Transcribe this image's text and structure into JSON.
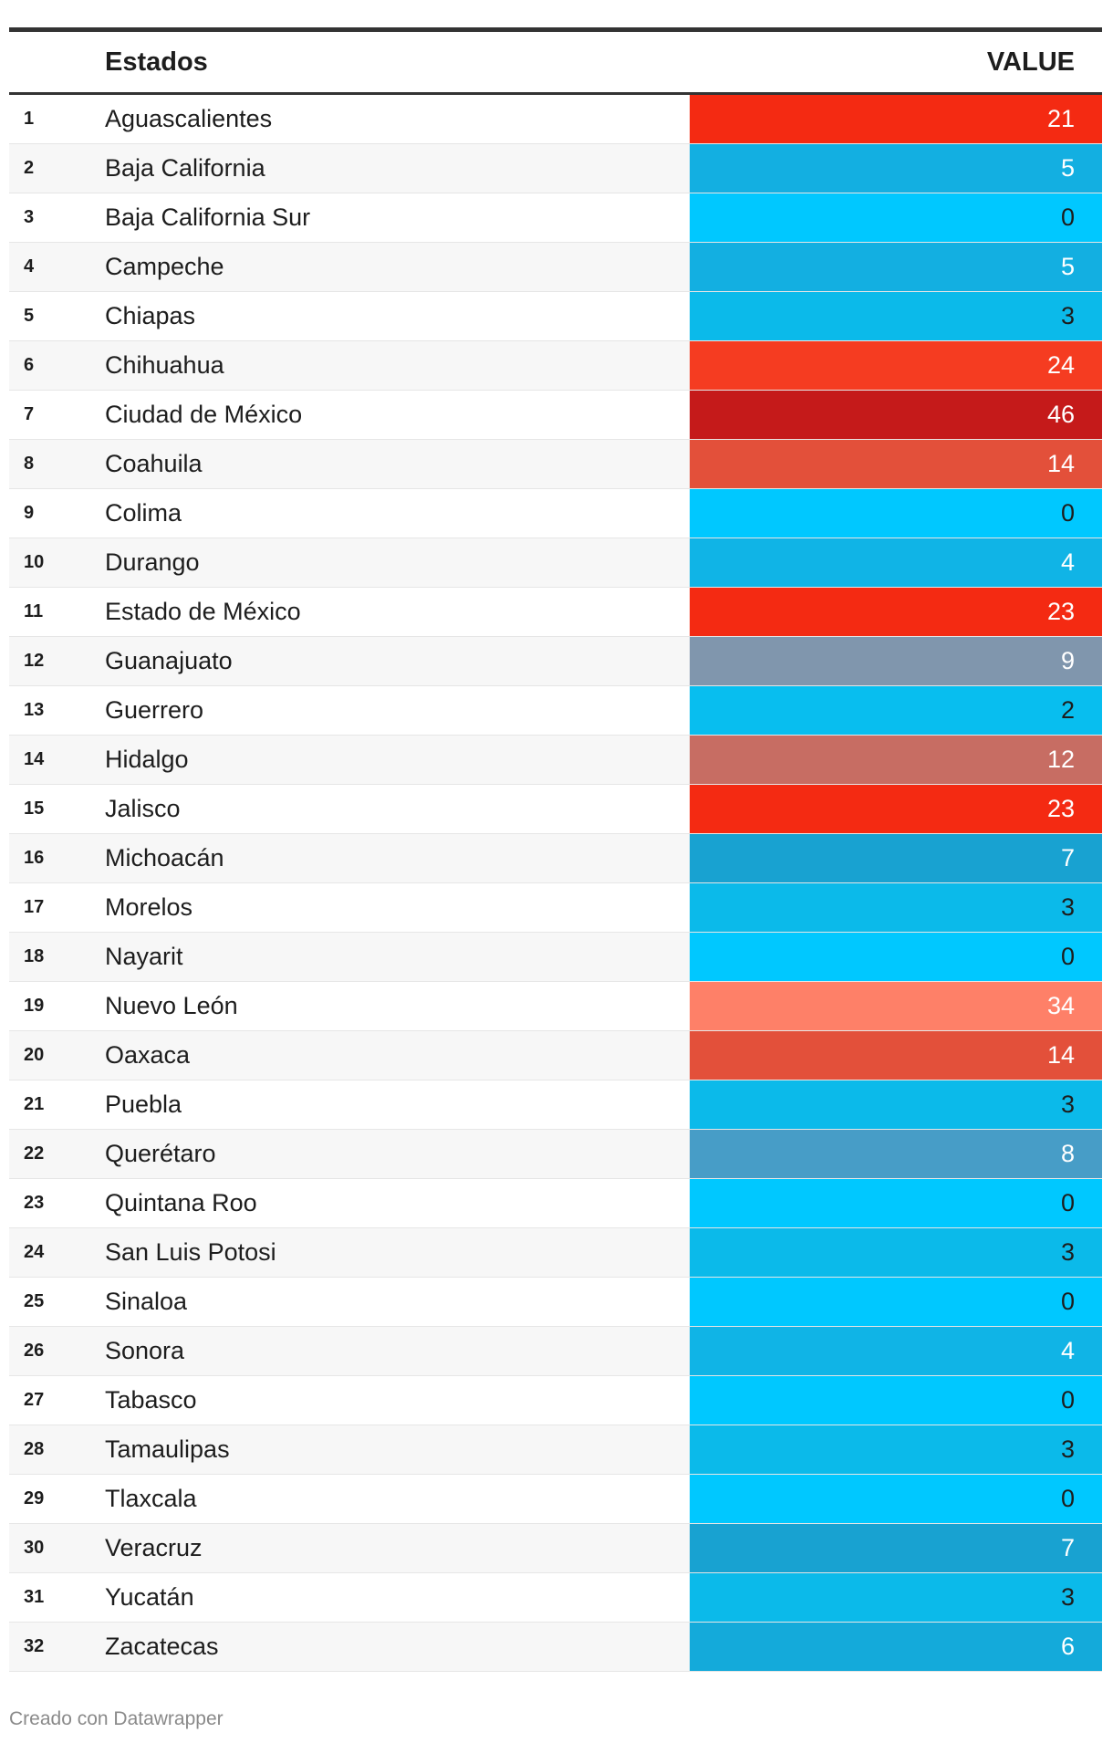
{
  "header": {
    "name_label": "Estados",
    "value_label": "VALUE"
  },
  "chart_data": {
    "type": "table",
    "columns": [
      "Estados",
      "VALUE"
    ],
    "rows": [
      {
        "rank": "1",
        "name": "Aguascalientes",
        "value": 21,
        "color": "#f42a12",
        "text_color": "#ffffff"
      },
      {
        "rank": "2",
        "name": "Baja California",
        "value": 5,
        "color": "#13afe1",
        "text_color": "#ffffff"
      },
      {
        "rank": "3",
        "name": "Baja California Sur",
        "value": 0,
        "color": "#00c8ff",
        "text_color": "#1d1d1d"
      },
      {
        "rank": "4",
        "name": "Campeche",
        "value": 5,
        "color": "#13afe1",
        "text_color": "#ffffff"
      },
      {
        "rank": "5",
        "name": "Chiapas",
        "value": 3,
        "color": "#0bbaea",
        "text_color": "#1d1d1d"
      },
      {
        "rank": "6",
        "name": "Chihuahua",
        "value": 24,
        "color": "#f53c21",
        "text_color": "#ffffff"
      },
      {
        "rank": "7",
        "name": "Ciudad de México",
        "value": 46,
        "color": "#c51a1a",
        "text_color": "#ffffff"
      },
      {
        "rank": "8",
        "name": "Coahuila",
        "value": 14,
        "color": "#e3503a",
        "text_color": "#ffffff"
      },
      {
        "rank": "9",
        "name": "Colima",
        "value": 0,
        "color": "#00c8ff",
        "text_color": "#1d1d1d"
      },
      {
        "rank": "10",
        "name": "Durango",
        "value": 4,
        "color": "#10b4e6",
        "text_color": "#ffffff"
      },
      {
        "rank": "11",
        "name": "Estado de México",
        "value": 23,
        "color": "#f42a12",
        "text_color": "#ffffff"
      },
      {
        "rank": "12",
        "name": "Guanajuato",
        "value": 9,
        "color": "#8096ad",
        "text_color": "#ffffff"
      },
      {
        "rank": "13",
        "name": "Guerrero",
        "value": 2,
        "color": "#08beef",
        "text_color": "#1d1d1d"
      },
      {
        "rank": "14",
        "name": "Hidalgo",
        "value": 12,
        "color": "#c76d63",
        "text_color": "#ffffff"
      },
      {
        "rank": "15",
        "name": "Jalisco",
        "value": 23,
        "color": "#f42a12",
        "text_color": "#ffffff"
      },
      {
        "rank": "16",
        "name": "Michoacán",
        "value": 7,
        "color": "#18a2d1",
        "text_color": "#ffffff"
      },
      {
        "rank": "17",
        "name": "Morelos",
        "value": 3,
        "color": "#0bbaea",
        "text_color": "#1d1d1d"
      },
      {
        "rank": "18",
        "name": "Nayarit",
        "value": 0,
        "color": "#00c8ff",
        "text_color": "#1d1d1d"
      },
      {
        "rank": "19",
        "name": "Nuevo León",
        "value": 34,
        "color": "#fe8068",
        "text_color": "#ffffff"
      },
      {
        "rank": "20",
        "name": "Oaxaca",
        "value": 14,
        "color": "#e3503a",
        "text_color": "#ffffff"
      },
      {
        "rank": "21",
        "name": "Puebla",
        "value": 3,
        "color": "#0bbaea",
        "text_color": "#1d1d1d"
      },
      {
        "rank": "22",
        "name": "Querétaro",
        "value": 8,
        "color": "#479dc7",
        "text_color": "#ffffff"
      },
      {
        "rank": "23",
        "name": "Quintana Roo",
        "value": 0,
        "color": "#00c8ff",
        "text_color": "#1d1d1d"
      },
      {
        "rank": "24",
        "name": "San Luis Potosi",
        "value": 3,
        "color": "#0bbaea",
        "text_color": "#1d1d1d"
      },
      {
        "rank": "25",
        "name": "Sinaloa",
        "value": 0,
        "color": "#00c8ff",
        "text_color": "#1d1d1d"
      },
      {
        "rank": "26",
        "name": "Sonora",
        "value": 4,
        "color": "#10b4e6",
        "text_color": "#ffffff"
      },
      {
        "rank": "27",
        "name": "Tabasco",
        "value": 0,
        "color": "#00c8ff",
        "text_color": "#1d1d1d"
      },
      {
        "rank": "28",
        "name": "Tamaulipas",
        "value": 3,
        "color": "#0bbaea",
        "text_color": "#1d1d1d"
      },
      {
        "rank": "29",
        "name": "Tlaxcala",
        "value": 0,
        "color": "#00c8ff",
        "text_color": "#1d1d1d"
      },
      {
        "rank": "30",
        "name": "Veracruz",
        "value": 7,
        "color": "#18a2d1",
        "text_color": "#ffffff"
      },
      {
        "rank": "31",
        "name": "Yucatán",
        "value": 3,
        "color": "#0bbaea",
        "text_color": "#1d1d1d"
      },
      {
        "rank": "32",
        "name": "Zacatecas",
        "value": 6,
        "color": "#14aada",
        "text_color": "#ffffff"
      }
    ]
  },
  "footer": {
    "credit": "Creado con Datawrapper"
  }
}
